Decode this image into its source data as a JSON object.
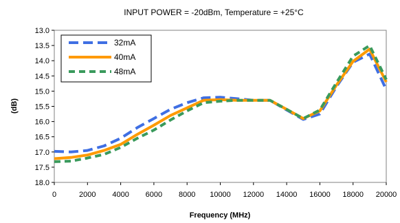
{
  "chart_data": {
    "type": "line",
    "title": "INPUT POWER = -20dBm, Temperature = +25°C",
    "xlabel": "Frequency (MHz)",
    "ylabel": "(dB)",
    "xlim": [
      0,
      20000
    ],
    "ylim": [
      13.0,
      18.0
    ],
    "y_inverted": true,
    "xticks": [
      "0",
      "2000",
      "4000",
      "6000",
      "8000",
      "10000",
      "12000",
      "14000",
      "16000",
      "18000",
      "20000"
    ],
    "yticks": [
      "13.0",
      "13.5",
      "14.0",
      "14.5",
      "15.0",
      "15.5",
      "16.0",
      "16.5",
      "17.0",
      "17.5",
      "18.0"
    ],
    "legend_position": "top-left",
    "grid": false,
    "series": [
      {
        "name": "32mA",
        "color": "#3f6fe3",
        "style": "dashed",
        "x": [
          0,
          1000,
          2000,
          3000,
          4000,
          5000,
          6000,
          7000,
          8000,
          9000,
          10000,
          11000,
          12000,
          13000,
          14000,
          15000,
          16000,
          17000,
          18000,
          19000,
          20000
        ],
        "y": [
          16.98,
          17.0,
          16.95,
          16.8,
          16.55,
          16.2,
          15.9,
          15.6,
          15.38,
          15.22,
          15.2,
          15.25,
          15.3,
          15.3,
          15.62,
          15.93,
          15.75,
          14.85,
          14.05,
          13.78,
          14.95
        ]
      },
      {
        "name": "40mA",
        "color": "#ff9a00",
        "style": "solid",
        "x": [
          0,
          1000,
          2000,
          3000,
          4000,
          5000,
          6000,
          7000,
          8000,
          9000,
          10000,
          11000,
          12000,
          13000,
          14000,
          15000,
          16000,
          17000,
          18000,
          19000,
          20000
        ],
        "y": [
          17.22,
          17.18,
          17.1,
          16.95,
          16.75,
          16.42,
          16.12,
          15.8,
          15.55,
          15.3,
          15.28,
          15.3,
          15.3,
          15.3,
          15.6,
          15.9,
          15.65,
          14.8,
          14.02,
          13.62,
          14.7
        ]
      },
      {
        "name": "48mA",
        "color": "#3a9a5c",
        "style": "dashed",
        "x": [
          0,
          1000,
          2000,
          3000,
          4000,
          5000,
          6000,
          7000,
          8000,
          9000,
          10000,
          11000,
          12000,
          13000,
          14000,
          15000,
          16000,
          17000,
          18000,
          19000,
          20000
        ],
        "y": [
          17.32,
          17.3,
          17.2,
          17.08,
          16.85,
          16.55,
          16.28,
          15.95,
          15.65,
          15.38,
          15.33,
          15.3,
          15.3,
          15.3,
          15.6,
          15.9,
          15.62,
          14.72,
          13.85,
          13.5,
          14.62
        ]
      }
    ]
  }
}
